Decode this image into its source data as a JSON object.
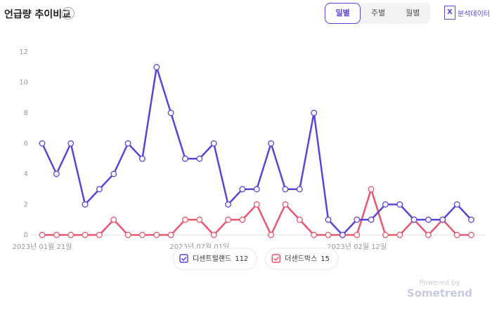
{
  "header": {
    "title": "언급량 추이비교",
    "help": "?",
    "tabs": [
      "일별",
      "주별",
      "월별"
    ],
    "button": "분석데이터"
  },
  "footer": {
    "powered": "Powered by",
    "brand": "Sometrend"
  },
  "chart_data": {
    "type": "line",
    "categories": [
      "2023년 01월 21일",
      null,
      null,
      null,
      null,
      null,
      null,
      null,
      null,
      null,
      null,
      "2023년 02월 01일",
      null,
      null,
      null,
      null,
      null,
      null,
      null,
      null,
      null,
      null,
      "2023년 02월 12일",
      null,
      null,
      null,
      null,
      null,
      null,
      null,
      null
    ],
    "series": [
      {
        "name": "디센트럴랜드",
        "total": 112,
        "color": "#5b45d6",
        "values": [
          6,
          4,
          6,
          2,
          3,
          4,
          6,
          5,
          11,
          8,
          5,
          5,
          6,
          2,
          3,
          3,
          6,
          3,
          3,
          8,
          1,
          0,
          1,
          1,
          2,
          2,
          1,
          1,
          1,
          2,
          1
        ]
      },
      {
        "name": "더샌드박스",
        "total": 15,
        "color": "#e8566f",
        "values": [
          0,
          0,
          0,
          0,
          0,
          1,
          0,
          0,
          0,
          0,
          1,
          1,
          0,
          1,
          1,
          2,
          0,
          2,
          1,
          0,
          0,
          0,
          0,
          3,
          0,
          0,
          1,
          0,
          1,
          0,
          0
        ]
      }
    ],
    "ylim": [
      0,
      12
    ],
    "yticks": [
      0,
      2,
      4,
      6,
      8,
      10,
      12
    ]
  }
}
